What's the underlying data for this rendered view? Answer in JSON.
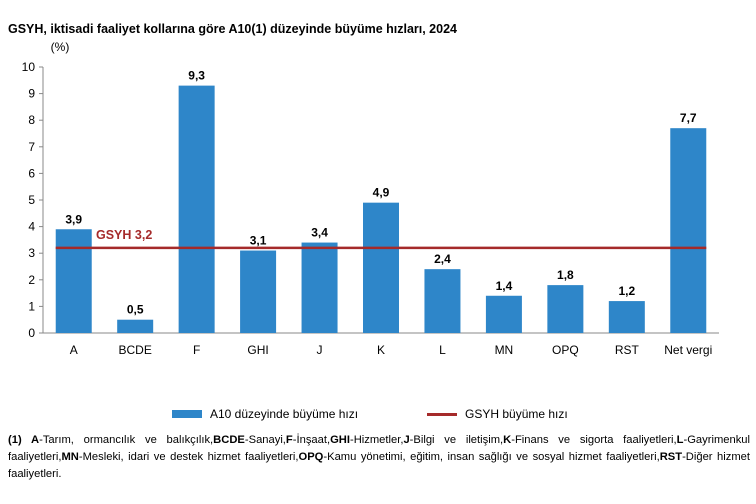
{
  "title": "GSYH, iktisadi faaliyet kollarına göre A10(1) düzeyinde büyüme hızları, 2024",
  "chart_data": {
    "type": "bar",
    "title": "GSYH, iktisadi faaliyet kollarına göre A10(1) düzeyinde büyüme hızları, 2024",
    "ylabel": "(%)",
    "ylim": [
      0,
      10
    ],
    "yticks": [
      0,
      1,
      2,
      3,
      4,
      5,
      6,
      7,
      8,
      9,
      10
    ],
    "grid": false,
    "legend_position": "bottom",
    "categories": [
      "A",
      "BCDE",
      "F",
      "GHI",
      "J",
      "K",
      "L",
      "MN",
      "OPQ",
      "RST",
      "Net vergi"
    ],
    "series": [
      {
        "name": "A10 düzeyinde büyüme hızı",
        "type": "bar",
        "color": "#2E86C9",
        "values": [
          3.9,
          0.5,
          9.3,
          3.1,
          3.4,
          4.9,
          2.4,
          1.4,
          1.8,
          1.2,
          7.7
        ],
        "labels": [
          "3,9",
          "0,5",
          "9,3",
          "3,1",
          "3,4",
          "4,9",
          "2,4",
          "1,4",
          "1,8",
          "1,2",
          "7,7"
        ]
      },
      {
        "name": "GSYH büyüme hızı",
        "type": "line",
        "color": "#A52A2A",
        "value": 3.2,
        "label": "GSYH 3,2"
      }
    ]
  },
  "footnote": [
    {
      "b": "(1) A",
      "t": "-Tarım, ormancılık ve balıkçılık,"
    },
    {
      "b": "BCDE",
      "t": "-Sanayi,"
    },
    {
      "b": "F",
      "t": "-İnşaat,"
    },
    {
      "b": "GHI",
      "t": "-Hizmetler,"
    },
    {
      "b": "J",
      "t": "-Bilgi ve iletişim,"
    },
    {
      "b": "K",
      "t": "-Finans ve sigorta faaliyetleri,"
    },
    {
      "b": "L",
      "t": "-Gayrimenkul faaliyetleri,"
    },
    {
      "b": "MN",
      "t": "-Mesleki, idari ve destek hizmet faaliyetleri,"
    },
    {
      "b": "OPQ",
      "t": "-Kamu yönetimi, eğitim, insan sağlığı ve sosyal hizmet faaliyetleri,"
    },
    {
      "b": "RST",
      "t": "-Diğer hizmet faaliyetleri."
    }
  ]
}
